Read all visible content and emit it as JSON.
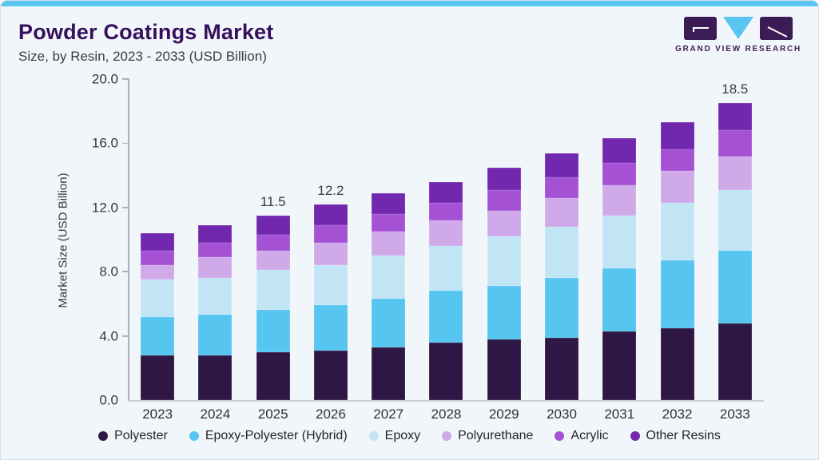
{
  "header": {
    "title": "Powder Coatings Market",
    "subtitle": "Size, by Resin, 2023 - 2033 (USD Billion)"
  },
  "logo": {
    "text": "GRAND VIEW RESEARCH",
    "brand_purple": "#3b1c55",
    "brand_blue": "#58c6f1"
  },
  "chart_data": {
    "type": "bar",
    "stacked": true,
    "title": "Powder Coatings Market Size, by Resin, 2023 - 2033 (USD Billion)",
    "xlabel": "",
    "ylabel": "Market Size (USD Billion)",
    "ylim": [
      0,
      20
    ],
    "ytick_labels": [
      "0.0",
      "4.0",
      "8.0",
      "12.0",
      "16.0",
      "20.0"
    ],
    "ytick_values": [
      0,
      4,
      8,
      12,
      16,
      20
    ],
    "grid": false,
    "legend_position": "bottom",
    "categories": [
      "2023",
      "2024",
      "2025",
      "2026",
      "2027",
      "2028",
      "2029",
      "2030",
      "2031",
      "2032",
      "2033"
    ],
    "series": [
      {
        "name": "Polyester",
        "color": "#2f1745",
        "values": [
          2.8,
          2.8,
          3.0,
          3.1,
          3.3,
          3.6,
          3.8,
          3.9,
          4.3,
          4.5,
          4.8
        ]
      },
      {
        "name": "Epoxy-Polyester (Hybrid)",
        "color": "#56c5f0",
        "values": [
          2.4,
          2.5,
          2.6,
          2.8,
          3.0,
          3.2,
          3.3,
          3.7,
          3.9,
          4.2,
          4.5
        ]
      },
      {
        "name": "Epoxy",
        "color": "#c2e5f6",
        "values": [
          2.3,
          2.3,
          2.5,
          2.5,
          2.7,
          2.8,
          3.1,
          3.2,
          3.3,
          3.6,
          3.8
        ]
      },
      {
        "name": "Polyurethane",
        "color": "#d0a9e9",
        "values": [
          0.9,
          1.3,
          1.2,
          1.4,
          1.5,
          1.6,
          1.6,
          1.8,
          1.9,
          2.0,
          2.1
        ]
      },
      {
        "name": "Acrylic",
        "color": "#a551d4",
        "values": [
          0.9,
          0.9,
          1.0,
          1.1,
          1.1,
          1.1,
          1.3,
          1.3,
          1.4,
          1.3,
          1.6
        ]
      },
      {
        "name": "Other Resins",
        "color": "#7127ae",
        "values": [
          1.1,
          1.1,
          1.2,
          1.3,
          1.3,
          1.3,
          1.4,
          1.5,
          1.5,
          1.7,
          1.7
        ]
      }
    ],
    "totals": [
      10.4,
      10.9,
      11.5,
      12.2,
      12.9,
      13.6,
      14.5,
      15.4,
      16.3,
      17.3,
      18.5
    ],
    "bar_labels": {
      "2025": "11.5",
      "2026": "12.2",
      "2033": "18.5"
    }
  }
}
